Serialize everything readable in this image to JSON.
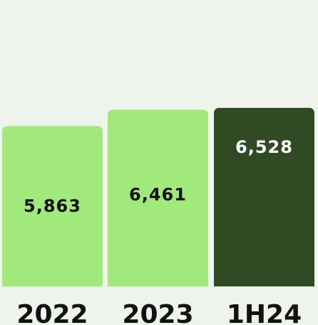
{
  "chart_data": {
    "type": "bar",
    "categories": [
      "2022",
      "2023",
      "1H24"
    ],
    "values": [
      5863,
      6461,
      6528
    ],
    "value_labels": [
      "5,863",
      "6,461",
      "6,528"
    ],
    "ylim": [
      0,
      7000
    ],
    "grid": false,
    "legend": "none",
    "colors": {
      "bars": [
        "#a2e97c",
        "#a2e97c",
        "#304b24"
      ],
      "labels": [
        "#121212",
        "#121212",
        "#ffffff"
      ]
    },
    "background": "#eef3ec"
  }
}
